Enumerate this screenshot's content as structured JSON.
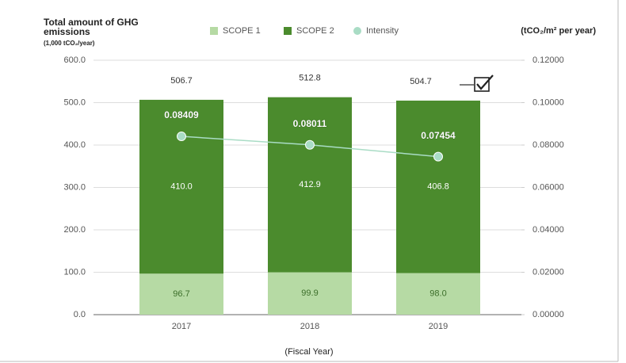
{
  "chart_data": {
    "type": "bar",
    "title": "Total amount of GHG emissions",
    "subtitle": "(1,000 tCO₂/year)",
    "y2_label": "(tCO₂/m² per year)",
    "x_label": "(Fiscal Year)",
    "categories": [
      "2017",
      "2018",
      "2019"
    ],
    "series": [
      {
        "name": "SCOPE 1",
        "type": "bar",
        "color": "#b6daa4",
        "values": [
          96.7,
          99.9,
          98.0
        ],
        "value_labels": [
          "96.7",
          "99.9",
          "98.0"
        ]
      },
      {
        "name": "SCOPE 2",
        "type": "bar",
        "color": "#4b8b2d",
        "values": [
          410.0,
          412.9,
          406.8
        ],
        "value_labels": [
          "410.0",
          "412.9",
          "406.8"
        ]
      },
      {
        "name": "Intensity",
        "type": "line",
        "axis": "y2",
        "color": "#a9dcc5",
        "values": [
          0.08409,
          0.08011,
          0.07454
        ]
      }
    ],
    "totals": [
      506.7,
      512.8,
      504.7
    ],
    "stacked": true,
    "ylim": [
      0,
      600
    ],
    "yticks": [
      {
        "value": 0,
        "label": "0.0"
      },
      {
        "value": 100,
        "label": "100.0"
      },
      {
        "value": 200,
        "label": "200.0"
      },
      {
        "value": 300,
        "label": "300.0"
      },
      {
        "value": 400,
        "label": "400.0"
      },
      {
        "value": 500,
        "label": "500.0"
      },
      {
        "value": 600,
        "label": "600.0"
      }
    ],
    "y2lim": [
      0,
      0.12
    ],
    "y2ticks": [
      {
        "value": 0,
        "label": "0.00000"
      },
      {
        "value": 0.02,
        "label": "0.02000"
      },
      {
        "value": 0.04,
        "label": "0.04000"
      },
      {
        "value": 0.06,
        "label": "0.06000"
      },
      {
        "value": 0.08,
        "label": "0.08000"
      },
      {
        "value": 0.1,
        "label": "0.10000"
      },
      {
        "value": 0.12,
        "label": "0.12000"
      }
    ],
    "grid": true,
    "legend": "top"
  }
}
